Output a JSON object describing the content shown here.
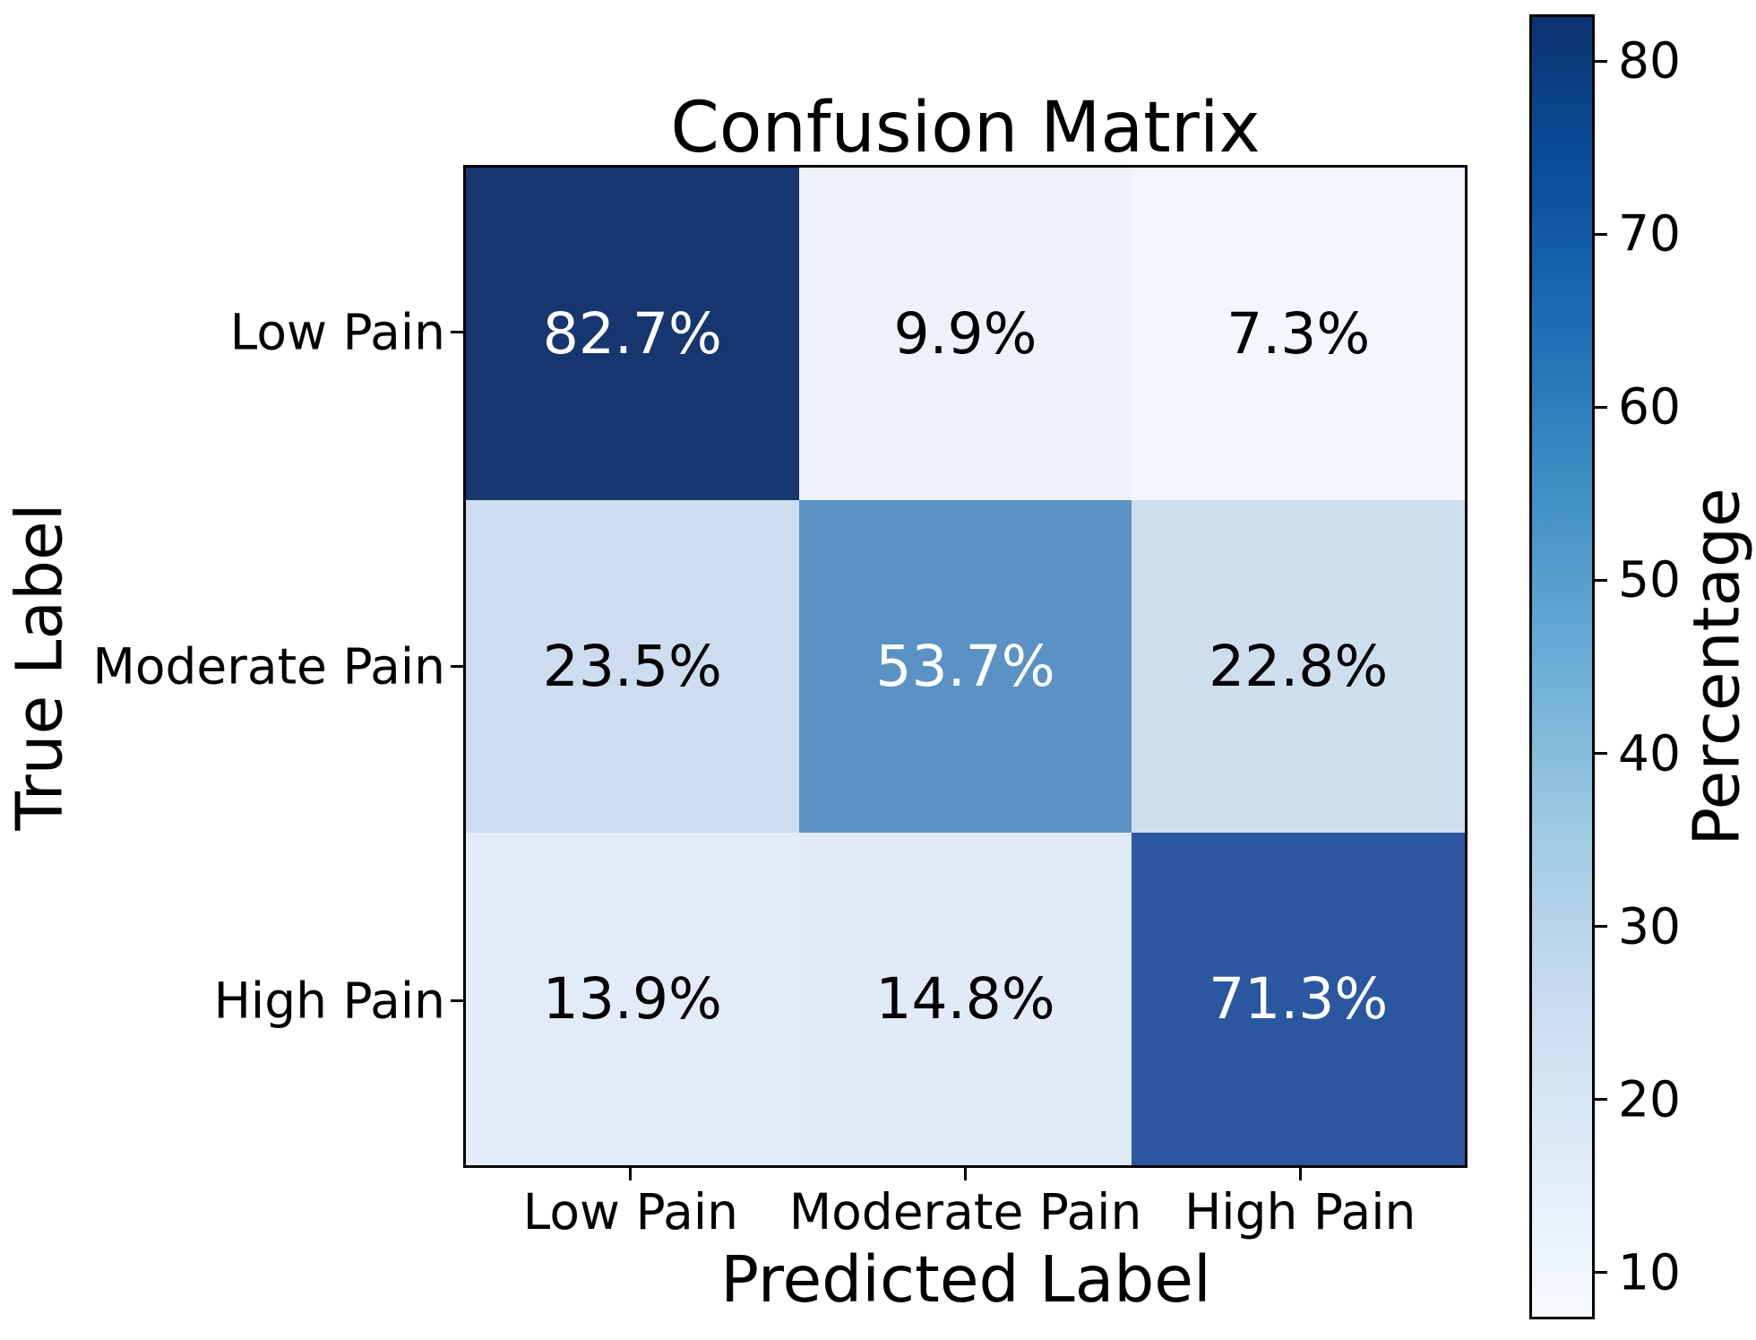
{
  "chart_data": {
    "type": "heatmap",
    "title": "Confusion Matrix",
    "xlabel": "Predicted Label",
    "ylabel": "True Label",
    "x_categories": [
      "Low Pain",
      "Moderate Pain",
      "High Pain"
    ],
    "y_categories": [
      "Low Pain",
      "Moderate Pain",
      "High Pain"
    ],
    "values_percent": [
      [
        82.7,
        9.9,
        7.3
      ],
      [
        23.5,
        53.7,
        22.8
      ],
      [
        13.9,
        14.8,
        71.3
      ]
    ],
    "cell_labels": [
      [
        "82.7%",
        "9.9%",
        "7.3%"
      ],
      [
        "23.5%",
        "53.7%",
        "22.8%"
      ],
      [
        "13.9%",
        "14.8%",
        "71.3%"
      ]
    ],
    "cell_colors": [
      [
        "#16366f",
        "#edf2fa",
        "#f3f7fd"
      ],
      [
        "#cdddef",
        "#5b92c4",
        "#cfdeef"
      ],
      [
        "#e2ecf8",
        "#e1ebf7",
        "#2b57a0"
      ]
    ],
    "cell_text_colors": [
      [
        "#ffffff",
        "#000000",
        "#000000"
      ],
      [
        "#000000",
        "#ffffff",
        "#000000"
      ],
      [
        "#000000",
        "#000000",
        "#ffffff"
      ]
    ],
    "colormap": "Blues",
    "grid": false,
    "colorbar": {
      "label": "Percentage",
      "ticks": [
        10,
        20,
        30,
        40,
        50,
        60,
        70,
        80
      ],
      "vmin": 7.3,
      "vmax": 82.7,
      "gradient_stops_top_to_bottom": [
        "#0c3270",
        "#08519c",
        "#2171b5",
        "#4292c6",
        "#6baed6",
        "#9ecae1",
        "#c6dbef",
        "#deebf7",
        "#f7fbff"
      ]
    }
  }
}
